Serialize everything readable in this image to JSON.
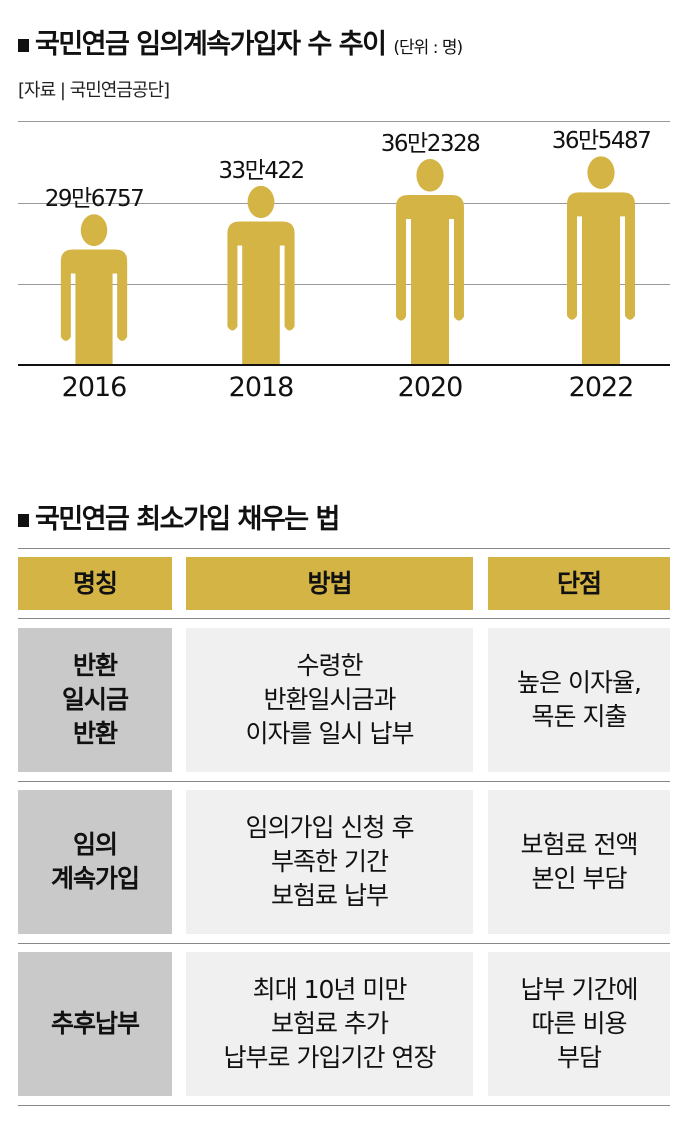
{
  "chart_section": {
    "title": "국민연금 임의계속가입자 수 추이",
    "unit": "(단위 : 명)",
    "source": "[자료 | 국민연금공단]"
  },
  "chart_data": {
    "type": "bar",
    "mark": "person-pictogram",
    "categories": [
      "2016",
      "2018",
      "2020",
      "2022"
    ],
    "values": [
      296757,
      330422,
      362328,
      365487
    ],
    "value_labels": [
      "29만6757",
      "33만422",
      "36만2328",
      "36만5487"
    ],
    "grid": true,
    "color": "#d4b445"
  },
  "table_section": {
    "title": "국민연금 최소가입 채우는 법",
    "headers": [
      "명칭",
      "방법",
      "단점"
    ],
    "rows": [
      [
        "반환\n일시금\n반환",
        "수령한\n반환일시금과\n이자를 일시 납부",
        "높은 이자율,\n목돈 지출"
      ],
      [
        "임의\n계속가입",
        "임의가입 신청 후\n부족한 기간\n보험료 납부",
        "보험료 전액\n본인 부담"
      ],
      [
        "추후납부",
        "최대 10년 미만\n보험료 추가\n납부로 가입기간 연장",
        "납부 기간에\n따른 비용\n부담"
      ]
    ],
    "colors": {
      "header": "#d4b445",
      "name_cell": "#c9c9c9",
      "body_cell": "#f0f0f0"
    }
  }
}
